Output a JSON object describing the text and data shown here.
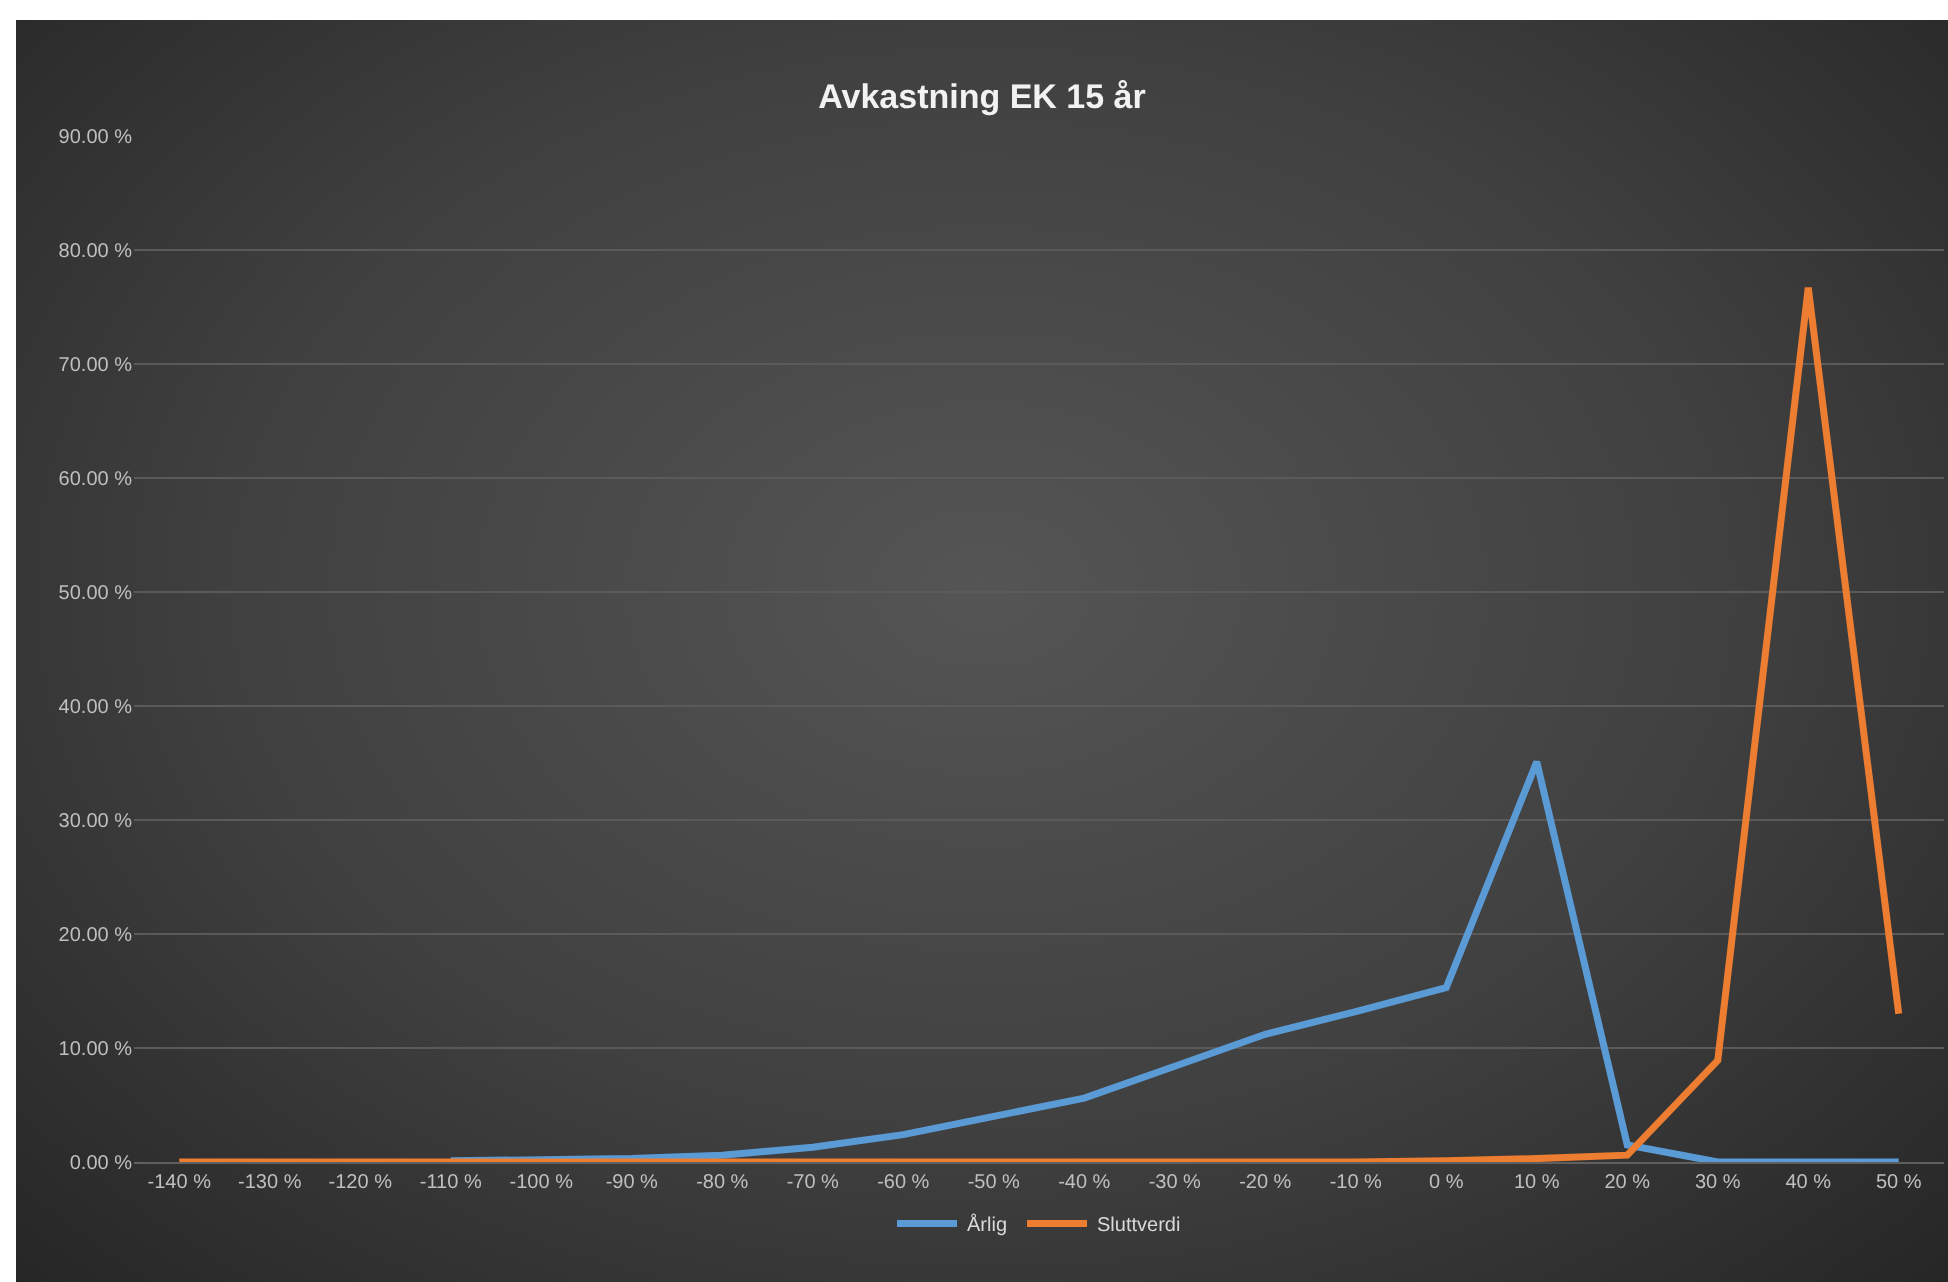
{
  "chart_data": {
    "type": "line",
    "title": "Avkastning EK 15 år",
    "categories": [
      "-140 %",
      "-130 %",
      "-120 %",
      "-110 %",
      "-100 %",
      "-90 %",
      "-80 %",
      "-70 %",
      "-60 %",
      "-50 %",
      "-40 %",
      "-30 %",
      "-20 %",
      "-10 %",
      "0 %",
      "10 %",
      "20 %",
      "30 %",
      "40 %",
      "50 %"
    ],
    "series": [
      {
        "name": "Årlig",
        "color": "#5b9bd5",
        "values": [
          null,
          null,
          null,
          0.1,
          0.2,
          0.3,
          0.6,
          1.3,
          2.4,
          4.0,
          5.6,
          8.4,
          11.2,
          13.2,
          15.3,
          35.1,
          1.5,
          0,
          0,
          0
        ]
      },
      {
        "name": "Sluttverdi",
        "color": "#ed7d31",
        "values": [
          0,
          0,
          0,
          0,
          0,
          0,
          0,
          0,
          0,
          0,
          0,
          0,
          0,
          0,
          0.1,
          0.3,
          0.6,
          8.9,
          76.7,
          13.0
        ]
      }
    ],
    "ylim": [
      0,
      90
    ],
    "yticks": [
      {
        "value": 0,
        "label": "0.00 %"
      },
      {
        "value": 10,
        "label": "10.00 %"
      },
      {
        "value": 20,
        "label": "20.00 %"
      },
      {
        "value": 30,
        "label": "30.00 %"
      },
      {
        "value": 40,
        "label": "40.00 %"
      },
      {
        "value": 50,
        "label": "50.00 %"
      },
      {
        "value": 60,
        "label": "60.00 %"
      },
      {
        "value": 70,
        "label": "70.00 %"
      },
      {
        "value": 80,
        "label": "80.00 %"
      },
      {
        "value": 90,
        "label": "90.00 %"
      }
    ],
    "grid": "y",
    "legend": "bottom"
  }
}
